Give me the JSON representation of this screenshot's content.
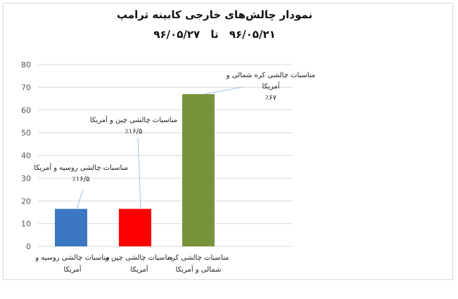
{
  "chart_data": {
    "type": "bar",
    "title": "نمودار چالش‌های خارجی کابینه ترامپ",
    "subtitle": "۹۶/۰۵/۲۱  تا  ۹۶/۰۵/۲۷",
    "ylim": [
      0,
      80
    ],
    "yticks": [
      "0",
      "10",
      "20",
      "30",
      "40",
      "50",
      "60",
      "70",
      "80"
    ],
    "grid": true,
    "categories": [
      "مناسبات چالشی روسیه و آمریکا",
      "مناسبات چالشی چین و آمریکا",
      "مناسبات چالشی کره شمالی و آمریکا"
    ],
    "category_lines": [
      [
        "مناسبات چالشی روسیه و",
        "آمریکا"
      ],
      [
        "مناسبات چالشی چین و",
        "آمریکا"
      ],
      [
        "مناسبات چالشی کره",
        "شمالی و آمریکا"
      ]
    ],
    "values": [
      16.5,
      16.5,
      67
    ],
    "colors": [
      "#3c77c3",
      "#ff0000",
      "#77933c"
    ],
    "annotations": [
      {
        "lines": [
          "مناسبات چالشی روسیه و آمریکا",
          "٪۱۶/۵"
        ]
      },
      {
        "lines": [
          "مناسبات چالشی  چین و آمریکا",
          "٪۱۶/۵"
        ]
      },
      {
        "lines": [
          "مناسبات چالشی کره شمالی و",
          "آمریکا",
          "٪۶۷"
        ]
      }
    ]
  }
}
